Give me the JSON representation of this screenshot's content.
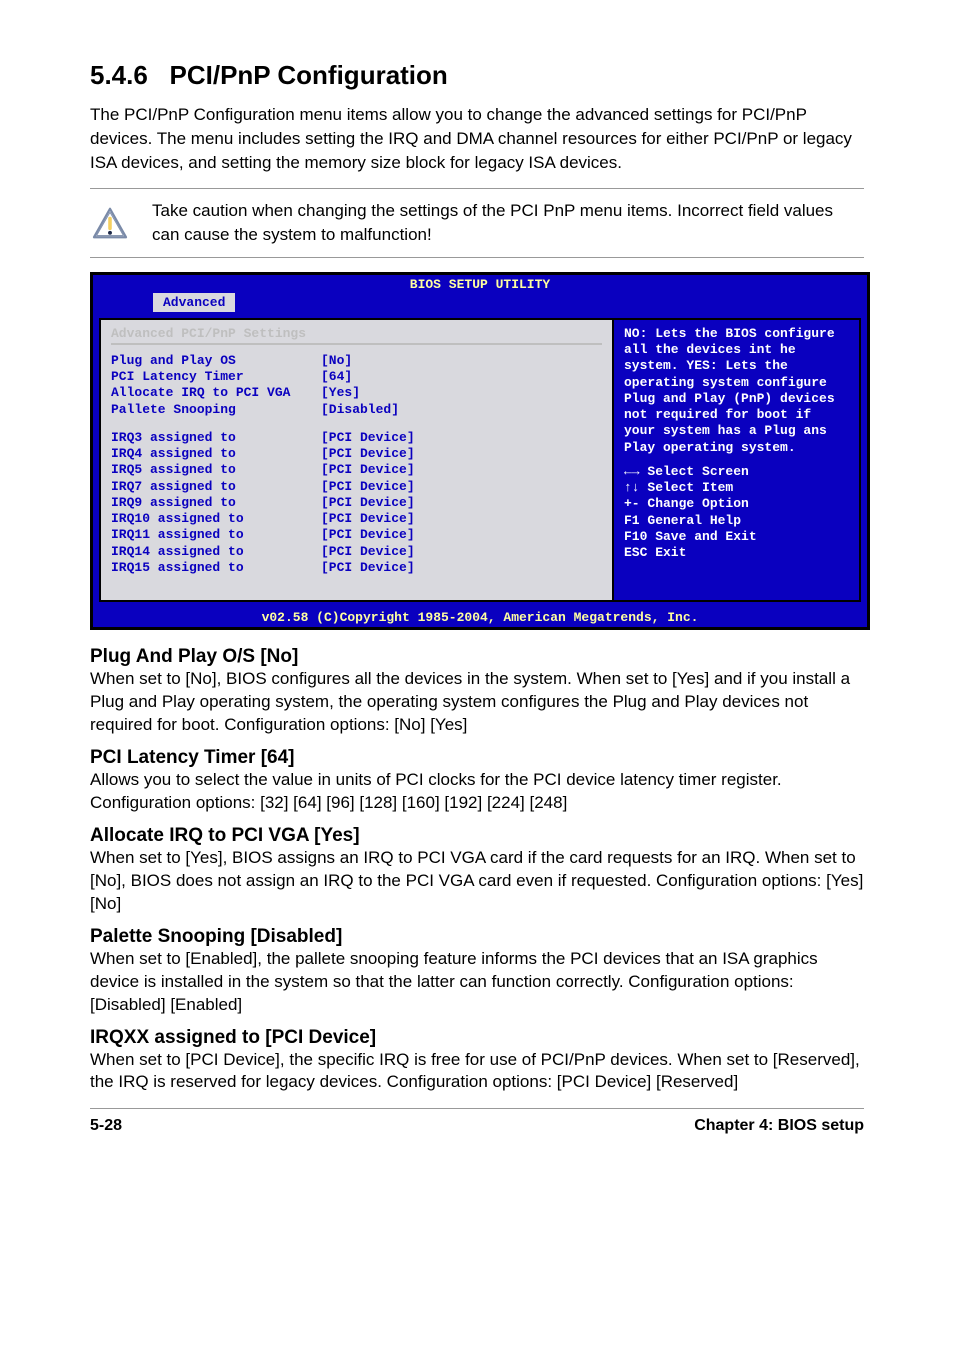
{
  "colors": {
    "bios_header_bg": "#0a00bf",
    "bios_header_fg": "#ffffa0",
    "bios_left_bg": "#d9d9de",
    "bios_left_fg": "#0a00bf",
    "bios_right_bg": "#0a00bf",
    "bios_right_fg": "#ffffff",
    "bios_title_fg": "#bfbfbf",
    "warning_stroke": "#7a8aa8",
    "warning_dot": "#1e2a4a"
  },
  "section": {
    "number": "5.4.6",
    "title": "PCI/PnP Configuration",
    "intro": "The PCI/PnP Configuration menu items allow you to change the advanced settings for PCI/PnP devices. The menu includes setting the IRQ and DMA channel resources for either PCI/PnP or legacy ISA devices, and setting the memory size block for legacy ISA devices."
  },
  "warning": {
    "text": "Take caution when changing the settings of the PCI PnP menu items. Incorrect field values can cause the system to malfunction!"
  },
  "bios": {
    "header": "BIOS SETUP UTILITY",
    "tab": "Advanced",
    "settings_title": "Advanced PCI/PnP Settings",
    "group1": [
      {
        "label": "Plug and Play OS",
        "value": "[No]"
      },
      {
        "label": "PCI Latency Timer",
        "value": "[64]"
      },
      {
        "label": "Allocate IRQ to PCI VGA",
        "value": "[Yes]"
      },
      {
        "label": "Pallete Snooping",
        "value": "[Disabled]"
      }
    ],
    "group2": [
      {
        "label": "IRQ3 assigned to",
        "value": "[PCI Device]"
      },
      {
        "label": "IRQ4 assigned to",
        "value": "[PCI Device]"
      },
      {
        "label": "IRQ5 assigned to",
        "value": "[PCI Device]"
      },
      {
        "label": "IRQ7 assigned to",
        "value": "[PCI Device]"
      },
      {
        "label": "IRQ9 assigned to",
        "value": "[PCI Device]"
      },
      {
        "label": "IRQ10 assigned to",
        "value": "[PCI Device]"
      },
      {
        "label": "IRQ11 assigned to",
        "value": "[PCI Device]"
      },
      {
        "label": "IRQ14 assigned to",
        "value": "[PCI Device]"
      },
      {
        "label": "IRQ15 assigned to",
        "value": "[PCI Device]"
      }
    ],
    "help_text": "NO: Lets the BIOS configure all the devices int he system. YES: Lets the operating system configure Plug and Play (PnP) devices not required for boot if your system has a Plug ans Play operating system.",
    "nav": [
      {
        "icon": "←→",
        "label": "Select Screen"
      },
      {
        "icon": "↑↓",
        "label": "Select Item"
      },
      {
        "icon": "+-",
        "label": "Change Option"
      },
      {
        "icon": "F1",
        "label": "General Help"
      },
      {
        "icon": "F10",
        "label": "Save and Exit"
      },
      {
        "icon": "ESC",
        "label": "Exit"
      }
    ],
    "footer": "v02.58 (C)Copyright 1985-2004, American Megatrends, Inc."
  },
  "items": [
    {
      "heading": "Plug And Play O/S [No]",
      "text": "When set to [No], BIOS configures all the devices in the system. When set to [Yes] and if you install a Plug and Play operating system, the operating system configures the Plug and Play devices not required for boot. Configuration options: [No] [Yes]"
    },
    {
      "heading": "PCI Latency Timer [64]",
      "text": "Allows you to select the value in units of PCI clocks for the PCI device latency timer register. Configuration options: [32] [64] [96] [128] [160] [192] [224] [248]"
    },
    {
      "heading": "Allocate IRQ to PCI VGA [Yes]",
      "text": "When set to [Yes], BIOS assigns an IRQ to PCI VGA card if the card requests for an IRQ. When set to [No], BIOS does not assign an IRQ to the PCI VGA card even if requested. Configuration options: [Yes] [No]"
    },
    {
      "heading": "Palette Snooping [Disabled]",
      "text": "When set to [Enabled], the pallete snooping feature informs the PCI devices that an ISA graphics device is installed in the system so that the latter can function correctly. Configuration options: [Disabled] [Enabled]"
    },
    {
      "heading": "IRQXX assigned to [PCI Device]",
      "text": "When set to [PCI Device], the specific IRQ is free for use of PCI/PnP devices. When set to [Reserved], the IRQ is reserved for legacy devices. Configuration options: [PCI Device] [Reserved]"
    }
  ],
  "footer": {
    "left": "5-28",
    "right": "Chapter 4: BIOS setup"
  }
}
